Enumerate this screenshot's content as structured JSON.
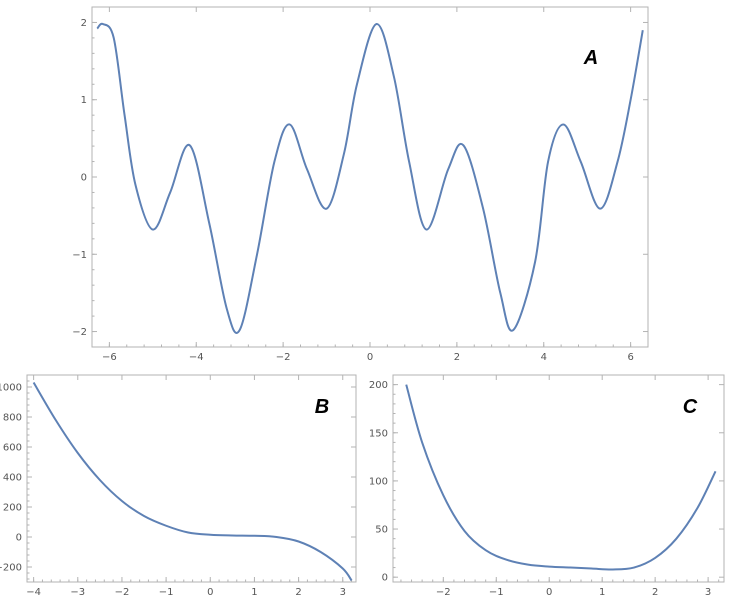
{
  "chart_data": [
    {
      "type": "line",
      "label": "A",
      "xlim": [
        -6.4,
        6.4
      ],
      "ylim": [
        -2.2,
        2.2
      ],
      "x_ticks": [
        -6,
        -4,
        -2,
        0,
        2,
        4,
        6
      ],
      "x_tick_labels": [
        "−6",
        "−4",
        "−2",
        "0",
        "2",
        "4",
        "6"
      ],
      "y_ticks": [
        -2,
        -1,
        0,
        1,
        2
      ],
      "y_tick_labels": [
        "−2",
        "−1",
        "0",
        "1",
        "2"
      ],
      "series": [
        {
          "x": [
            -6.28,
            -6.15,
            -5.9,
            -5.65,
            -5.4,
            -5.0,
            -4.6,
            -4.15,
            -3.7,
            -3.3,
            -3.0,
            -2.6,
            -2.2,
            -1.85,
            -1.45,
            -1.0,
            -0.6,
            -0.3,
            0.15,
            0.55,
            0.9,
            1.3,
            1.8,
            2.15,
            2.6,
            3.0,
            3.3,
            3.8,
            4.1,
            4.45,
            4.85,
            5.3,
            5.7,
            6.0,
            6.28
          ],
          "y": [
            1.92,
            1.98,
            1.8,
            0.8,
            -0.1,
            -0.68,
            -0.2,
            0.41,
            -0.6,
            -1.7,
            -1.98,
            -1.0,
            0.2,
            0.68,
            0.1,
            -0.41,
            0.3,
            1.2,
            1.98,
            1.3,
            0.2,
            -0.68,
            0.1,
            0.41,
            -0.4,
            -1.5,
            -1.98,
            -1.1,
            0.2,
            0.68,
            0.2,
            -0.41,
            0.2,
            1.0,
            1.9
          ]
        }
      ]
    },
    {
      "type": "line",
      "label": "B",
      "xlim": [
        -4.15,
        3.3
      ],
      "ylim": [
        -300,
        1080
      ],
      "x_ticks": [
        -4,
        -3,
        -2,
        -1,
        0,
        1,
        2,
        3
      ],
      "x_tick_labels": [
        "−4",
        "−3",
        "−2",
        "−1",
        "0",
        "1",
        "2",
        "3"
      ],
      "y_ticks": [
        -200,
        0,
        200,
        400,
        600,
        800,
        1000
      ],
      "y_tick_labels": [
        "−200",
        "0",
        "200",
        "400",
        "600",
        "800",
        "1000"
      ],
      "series": [
        {
          "x": [
            -4.0,
            -3.5,
            -3.0,
            -2.5,
            -2.0,
            -1.5,
            -1.0,
            -0.5,
            0.0,
            0.5,
            1.0,
            1.5,
            2.0,
            2.5,
            3.0,
            3.2
          ],
          "y": [
            1030,
            780,
            560,
            380,
            240,
            140,
            75,
            30,
            15,
            10,
            8,
            0,
            -30,
            -100,
            -210,
            -290
          ]
        }
      ]
    },
    {
      "type": "line",
      "label": "C",
      "xlim": [
        -2.95,
        3.3
      ],
      "ylim": [
        -5,
        210
      ],
      "x_ticks": [
        -2,
        -1,
        0,
        1,
        2,
        3
      ],
      "x_tick_labels": [
        "−2",
        "−1",
        "0",
        "1",
        "2",
        "3"
      ],
      "y_ticks": [
        0,
        50,
        100,
        150,
        200
      ],
      "y_tick_labels": [
        "0",
        "50",
        "100",
        "150",
        "200"
      ],
      "series": [
        {
          "x": [
            -2.7,
            -2.4,
            -2.0,
            -1.6,
            -1.2,
            -0.8,
            -0.4,
            0.0,
            0.4,
            0.8,
            1.2,
            1.6,
            2.0,
            2.4,
            2.8,
            3.14
          ],
          "y": [
            200,
            140,
            85,
            48,
            28,
            18,
            13,
            11,
            10,
            9,
            8,
            10,
            20,
            40,
            72,
            110
          ]
        }
      ]
    }
  ]
}
